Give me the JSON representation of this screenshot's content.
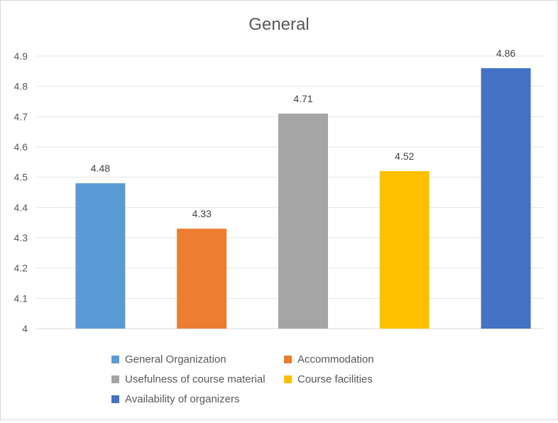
{
  "chart_data": {
    "type": "bar",
    "title": "General",
    "xlabel": "",
    "ylabel": "",
    "ylim": [
      4,
      4.9
    ],
    "yticks": [
      "4",
      "4.1",
      "4.2",
      "4.3",
      "4.4",
      "4.5",
      "4.6",
      "4.7",
      "4.8",
      "4.9"
    ],
    "grid": true,
    "legend_position": "bottom",
    "categories": [
      "General Organization",
      "Accommodation",
      "Usefulness of course material",
      "Course facilities",
      "Availability of organizers"
    ],
    "values": [
      4.48,
      4.33,
      4.71,
      4.52,
      4.86
    ],
    "data_labels": [
      "4.48",
      "4.33",
      "4.71",
      "4.52",
      "4.86"
    ],
    "colors": [
      "#5B9BD5",
      "#ED7D31",
      "#A5A5A5",
      "#FFC000",
      "#4472C4"
    ]
  }
}
